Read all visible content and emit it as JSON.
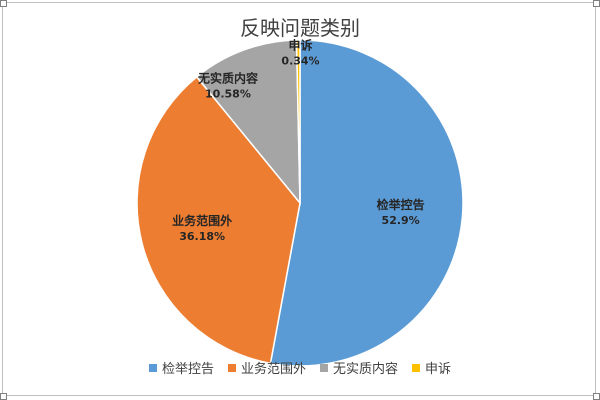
{
  "chart_data": {
    "type": "pie",
    "title": "反映问题类别",
    "start_angle_deg": 0,
    "direction": "clockwise",
    "legend_position": "bottom",
    "slices": [
      {
        "name": "检举控告",
        "value": 52.9,
        "label": "52.9%",
        "color": "#5b9bd5"
      },
      {
        "name": "业务范围外",
        "value": 36.18,
        "label": "36.18%",
        "color": "#ed7d31"
      },
      {
        "name": "无实质内容",
        "value": 10.58,
        "label": "10.58%",
        "color": "#a5a5a5"
      },
      {
        "name": "申诉",
        "value": 0.34,
        "label": "0.34%",
        "color": "#ffc000"
      }
    ]
  }
}
